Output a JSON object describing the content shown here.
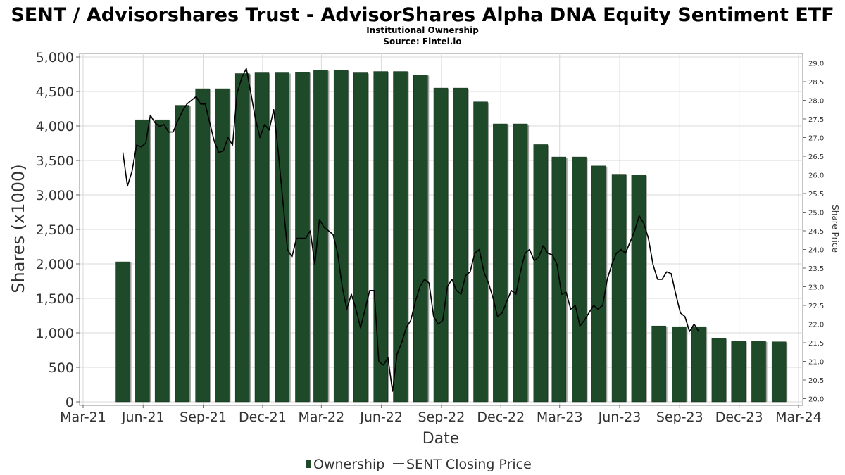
{
  "chart_data": {
    "type": "bar",
    "title": "SENT / Advisorshares Trust - AdvisorShares Alpha DNA Equity Sentiment ETF",
    "subtitle": "Institutional Ownership",
    "source": "Source: Fintel.io",
    "xlabel": "Date",
    "ylabel": "Shares (x1000)",
    "ylabel_right": "Share Price",
    "ylim": [
      0,
      5000
    ],
    "ylim_right": [
      19.9,
      29.15
    ],
    "grid": true,
    "legend_placement": "bottom",
    "left_ticks": [
      "0",
      "500",
      "1,000",
      "1,500",
      "2,000",
      "2,500",
      "3,000",
      "3,500",
      "4,000",
      "4,500",
      "5,000"
    ],
    "right_ticks": [
      "20.0",
      "20.5",
      "21.0",
      "21.5",
      "22.0",
      "22.5",
      "23.0",
      "23.5",
      "24.0",
      "24.5",
      "25.0",
      "25.5",
      "26.0",
      "26.5",
      "27.0",
      "27.5",
      "28.0",
      "28.5",
      "29.0"
    ],
    "x_ticks": [
      "Mar-21",
      "Jun-21",
      "Sep-21",
      "Dec-21",
      "Mar-22",
      "Jun-22",
      "Sep-22",
      "Dec-22",
      "Mar-23",
      "Jun-23",
      "Sep-23",
      "Dec-23",
      "Mar-24"
    ],
    "x_tick_dates": [
      "2021-03-01",
      "2021-06-01",
      "2021-09-01",
      "2021-12-01",
      "2022-03-01",
      "2022-06-01",
      "2022-09-01",
      "2022-12-01",
      "2023-03-01",
      "2023-06-01",
      "2023-09-01",
      "2023-12-01",
      "2024-03-01"
    ],
    "series": [
      {
        "name": "Ownership",
        "color": "#1e4a2a",
        "dates": [
          "2021-05-01",
          "2021-05-31",
          "2021-06-30",
          "2021-07-31",
          "2021-08-31",
          "2021-09-30",
          "2021-10-31",
          "2021-11-30",
          "2021-12-31",
          "2022-01-31",
          "2022-02-28",
          "2022-03-31",
          "2022-04-30",
          "2022-05-31",
          "2022-06-30",
          "2022-07-31",
          "2022-08-31",
          "2022-09-30",
          "2022-10-31",
          "2022-11-30",
          "2022-12-31",
          "2023-01-31",
          "2023-02-28",
          "2023-03-31",
          "2023-04-30",
          "2023-05-31",
          "2023-06-30",
          "2023-07-31",
          "2023-08-31",
          "2023-09-30",
          "2023-10-31",
          "2023-11-30",
          "2023-12-31",
          "2024-01-31"
        ],
        "values": [
          2030,
          4090,
          4090,
          4300,
          4540,
          4540,
          4760,
          4770,
          4770,
          4780,
          4810,
          4810,
          4770,
          4790,
          4790,
          4740,
          4550,
          4550,
          4350,
          4030,
          4030,
          3730,
          3550,
          3550,
          3420,
          3300,
          3290,
          1100,
          1090,
          1090,
          920,
          880,
          880,
          870
        ]
      },
      {
        "name": "SENT Closing Price",
        "color": "#000000",
        "dates": [
          "2021-05-01",
          "2021-05-08",
          "2021-05-15",
          "2021-05-22",
          "2021-05-29",
          "2021-06-05",
          "2021-06-12",
          "2021-06-19",
          "2021-06-26",
          "2021-07-03",
          "2021-07-10",
          "2021-07-17",
          "2021-07-24",
          "2021-07-31",
          "2021-08-07",
          "2021-08-14",
          "2021-08-21",
          "2021-08-28",
          "2021-09-04",
          "2021-09-11",
          "2021-09-18",
          "2021-09-25",
          "2021-10-02",
          "2021-10-09",
          "2021-10-16",
          "2021-10-23",
          "2021-10-30",
          "2021-11-06",
          "2021-11-13",
          "2021-11-20",
          "2021-11-27",
          "2021-12-04",
          "2021-12-11",
          "2021-12-18",
          "2021-12-25",
          "2022-01-01",
          "2022-01-08",
          "2022-01-15",
          "2022-01-22",
          "2022-01-29",
          "2022-02-05",
          "2022-02-12",
          "2022-02-19",
          "2022-02-26",
          "2022-03-05",
          "2022-03-12",
          "2022-03-19",
          "2022-03-26",
          "2022-04-02",
          "2022-04-09",
          "2022-04-16",
          "2022-04-23",
          "2022-04-30",
          "2022-05-07",
          "2022-05-14",
          "2022-05-21",
          "2022-05-28",
          "2022-06-04",
          "2022-06-11",
          "2022-06-18",
          "2022-06-25",
          "2022-07-02",
          "2022-07-09",
          "2022-07-16",
          "2022-07-23",
          "2022-07-30",
          "2022-08-06",
          "2022-08-13",
          "2022-08-20",
          "2022-08-27",
          "2022-09-03",
          "2022-09-10",
          "2022-09-17",
          "2022-09-24",
          "2022-10-01",
          "2022-10-08",
          "2022-10-15",
          "2022-10-22",
          "2022-10-29",
          "2022-11-05",
          "2022-11-12",
          "2022-11-19",
          "2022-11-26",
          "2022-12-03",
          "2022-12-10",
          "2022-12-17",
          "2022-12-24",
          "2022-12-31",
          "2023-01-07",
          "2023-01-14",
          "2023-01-21",
          "2023-01-28",
          "2023-02-04",
          "2023-02-11",
          "2023-02-18",
          "2023-02-25",
          "2023-03-04",
          "2023-03-11",
          "2023-03-18",
          "2023-03-25",
          "2023-04-01",
          "2023-04-08",
          "2023-04-15",
          "2023-04-22",
          "2023-04-29",
          "2023-05-06",
          "2023-05-13",
          "2023-05-20",
          "2023-05-27",
          "2023-06-03",
          "2023-06-10",
          "2023-06-17",
          "2023-06-24",
          "2023-07-01",
          "2023-07-08",
          "2023-07-15",
          "2023-07-22",
          "2023-07-29",
          "2023-08-05",
          "2023-08-12",
          "2023-08-19",
          "2023-08-26",
          "2023-09-02",
          "2023-09-09",
          "2023-09-16",
          "2023-09-23",
          "2023-09-30"
        ],
        "values": [
          26.6,
          25.7,
          26.1,
          26.8,
          26.75,
          26.85,
          27.6,
          27.4,
          27.3,
          27.35,
          27.15,
          27.15,
          27.45,
          27.7,
          27.9,
          28.0,
          28.1,
          27.9,
          27.9,
          27.4,
          26.9,
          26.6,
          26.65,
          27.0,
          26.8,
          28.2,
          28.6,
          28.85,
          28.2,
          27.5,
          27.0,
          27.35,
          27.2,
          27.75,
          26.6,
          25.3,
          24.0,
          23.8,
          24.3,
          24.3,
          24.3,
          24.5,
          23.6,
          24.8,
          24.6,
          24.5,
          24.4,
          23.9,
          23.0,
          22.4,
          22.8,
          22.4,
          21.9,
          22.4,
          22.9,
          22.9,
          21.0,
          20.9,
          21.1,
          20.2,
          21.2,
          21.5,
          21.9,
          22.1,
          22.6,
          23.0,
          23.2,
          23.1,
          22.2,
          22.0,
          22.1,
          23.0,
          23.2,
          22.9,
          22.8,
          23.3,
          23.4,
          23.9,
          24.0,
          23.4,
          23.1,
          22.7,
          22.2,
          22.3,
          22.6,
          22.9,
          22.8,
          23.4,
          23.9,
          24.0,
          23.7,
          23.8,
          24.1,
          23.9,
          23.85,
          23.6,
          22.8,
          22.85,
          22.4,
          22.5,
          21.95,
          22.1,
          22.3,
          22.5,
          22.4,
          22.5,
          23.2,
          23.6,
          23.9,
          24.0,
          23.9,
          24.2,
          24.5,
          24.9,
          24.7,
          24.3,
          23.6,
          23.2,
          23.2,
          23.4,
          23.35,
          22.8,
          22.3,
          22.2,
          21.8,
          22.0,
          21.8
        ]
      }
    ]
  }
}
